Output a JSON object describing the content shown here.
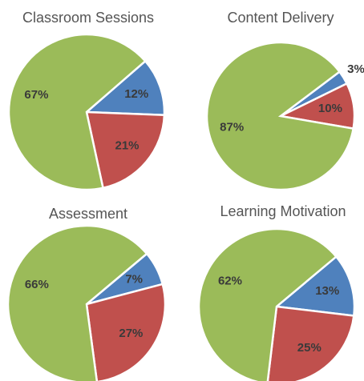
{
  "chart_data": [
    {
      "type": "pie",
      "title": "Classroom Sessions",
      "values": [
        12,
        21,
        67
      ],
      "value_labels": [
        "12%",
        "21%",
        "67%"
      ],
      "colors": [
        "#4f81bd",
        "#c0504d",
        "#9bbb59"
      ]
    },
    {
      "type": "pie",
      "title": "Content Delivery",
      "values": [
        3,
        10,
        87
      ],
      "value_labels": [
        "3%",
        "10%",
        "87%"
      ],
      "colors": [
        "#4f81bd",
        "#c0504d",
        "#9bbb59"
      ]
    },
    {
      "type": "pie",
      "title": "Assessment",
      "values": [
        7,
        27,
        66
      ],
      "value_labels": [
        "7%",
        "27%",
        "66%"
      ],
      "colors": [
        "#4f81bd",
        "#c0504d",
        "#9bbb59"
      ]
    },
    {
      "type": "pie",
      "title": "Learning Motivation",
      "values": [
        13,
        25,
        62
      ],
      "value_labels": [
        "13%",
        "25%",
        "62%"
      ],
      "colors": [
        "#4f81bd",
        "#c0504d",
        "#9bbb59"
      ]
    }
  ]
}
